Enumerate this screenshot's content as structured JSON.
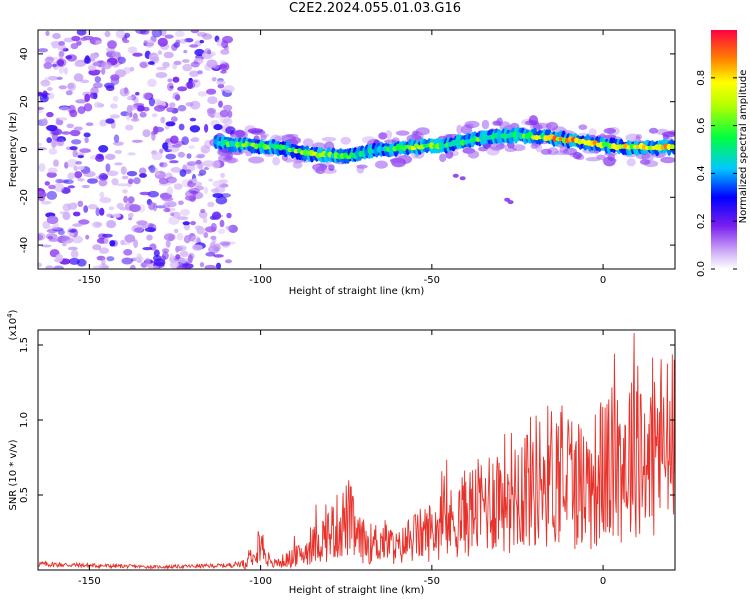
{
  "title": "C2E2.2024.055.01.03.G16",
  "chart_data": [
    {
      "type": "heatmap",
      "xlabel": "Height of straight line (km)",
      "ylabel": "Frequency (Hz)",
      "xlim": [
        -165,
        21
      ],
      "ylim": [
        -50,
        50
      ],
      "x_ticks": [
        -150,
        -100,
        -50,
        0
      ],
      "y_ticks": [
        40,
        20,
        0,
        -20,
        -40
      ],
      "colorbar": {
        "label": "Normalized spectral amplitude",
        "range": [
          0.0,
          1.0
        ],
        "ticks": [
          "0.0",
          "0.2",
          "0.4",
          "0.6",
          "0.8"
        ]
      },
      "ridge": {
        "description_points_x": [
          -113,
          -105,
          -95,
          -85,
          -75,
          -65,
          -55,
          -45,
          -35,
          -25,
          -15,
          -5,
          5,
          15,
          21
        ],
        "frequency_hz": [
          3,
          2,
          1,
          -2,
          -3,
          0,
          1,
          2,
          5,
          6,
          5,
          3,
          1,
          1,
          1
        ],
        "peak_amplitude": [
          0.55,
          0.75,
          0.7,
          0.75,
          0.6,
          0.55,
          0.75,
          0.6,
          0.65,
          0.55,
          0.9,
          0.9,
          0.8,
          0.85,
          0.95
        ]
      },
      "noise_region_x": [
        -165,
        -110
      ]
    },
    {
      "type": "line",
      "xlabel": "Height of straight line (km)",
      "ylabel": "SNR (10 * v/v)",
      "y_multiplier": "(x10",
      "y_multiplier_exp": "4",
      "y_multiplier_close": ")",
      "xlim": [
        -165,
        21
      ],
      "ylim": [
        0,
        1.6
      ],
      "x_ticks": [
        -150,
        -100,
        -50,
        0
      ],
      "y_ticks": [
        "0.5",
        "1.0",
        "1.5"
      ],
      "series_color": "#e8312a",
      "x": [
        -165,
        -150,
        -130,
        -110,
        -104,
        -101,
        -99,
        -97,
        -92,
        -88,
        -84,
        -80,
        -76,
        -74,
        -72,
        -68,
        -64,
        -60,
        -56,
        -52,
        -48,
        -44,
        -40,
        -36,
        -32,
        -28,
        -24,
        -20,
        -16,
        -12,
        -8,
        -4,
        0,
        4,
        8,
        10,
        12,
        16,
        20,
        21
      ],
      "y": [
        0.04,
        0.03,
        0.02,
        0.03,
        0.05,
        0.3,
        0.2,
        0.05,
        0.1,
        0.15,
        0.25,
        0.35,
        0.45,
        0.5,
        0.3,
        0.25,
        0.28,
        0.2,
        0.3,
        0.35,
        0.4,
        0.45,
        0.55,
        0.6,
        0.7,
        0.75,
        0.8,
        0.85,
        0.9,
        0.95,
        0.85,
        0.8,
        0.95,
        1.0,
        1.1,
        1.5,
        0.9,
        1.2,
        1.15,
        1.25
      ]
    }
  ]
}
